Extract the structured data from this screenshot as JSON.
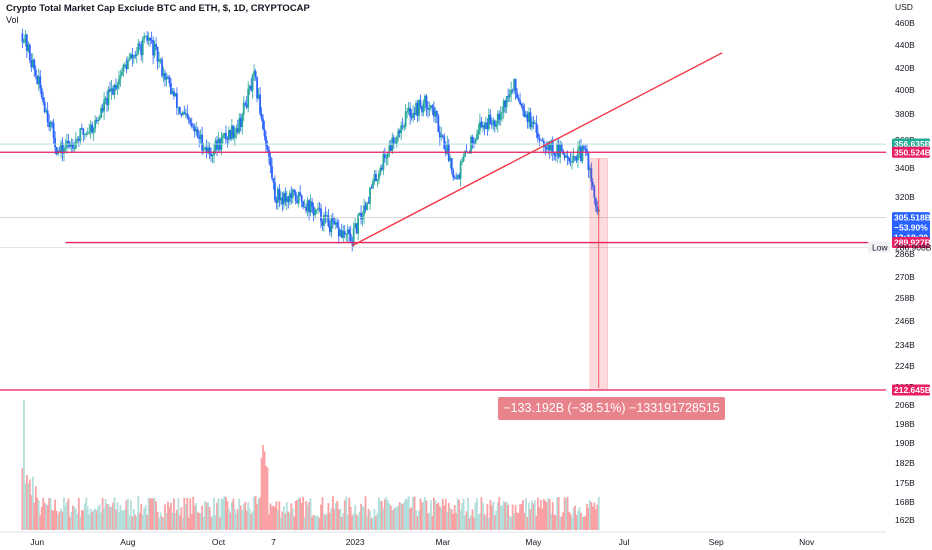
{
  "header": {
    "title": "Crypto Total Market Cap Exclude BTC and ETH, $, 1D, CRYPTOCAP",
    "volume_label": "Vol"
  },
  "currency_label": "USD",
  "colors": {
    "up": "#26a69a",
    "down": "#2962ff",
    "drawing_red": "#f23645",
    "level_pink": "#e91e63",
    "price_tag_blue": "#2962ff",
    "teal_tag": "#22ab94",
    "vol_up": "#b2dfdb",
    "vol_down": "#faa1a4"
  },
  "chart_data": {
    "type": "line",
    "subtype": "candlestick",
    "y_scale": "log",
    "ylim": [
      210,
      475
    ],
    "y_ticks": [
      "460B",
      "440B",
      "420B",
      "400B",
      "380B",
      "360B",
      "340B",
      "320B",
      "300B",
      "286B",
      "270B",
      "258B",
      "246B",
      "234B",
      "224B",
      "212B",
      "206B",
      "198B",
      "190B",
      "182B",
      "175B",
      "168B",
      "162B"
    ],
    "x_ticks": [
      "Jun",
      "Aug",
      "Oct",
      "7",
      "2023",
      "Mar",
      "May",
      "Jul",
      "Sep",
      "Nov"
    ],
    "series": [
      {
        "x": [
          "2022-05-22",
          "2022-06-15",
          "2022-07-10",
          "2022-07-30",
          "2022-08-15",
          "2022-09-05",
          "2022-09-25",
          "2022-10-15",
          "2022-10-25",
          "2022-11-08",
          "2022-11-25",
          "2022-12-20",
          "2022-12-30",
          "2023-01-20",
          "2023-02-05",
          "2023-02-20",
          "2023-03-10",
          "2023-03-25",
          "2023-04-05",
          "2023-04-18",
          "2023-05-01",
          "2023-05-15",
          "2023-05-28",
          "2023-06-06",
          "2023-06-10",
          "2023-06-14"
        ],
        "values": [
          450,
          350,
          372,
          420,
          445,
          382,
          350,
          372,
          410,
          320,
          318,
          297,
          292,
          345,
          380,
          390,
          332,
          370,
          376,
          402,
          368,
          352,
          348,
          350,
          322,
          305.5
        ]
      }
    ],
    "horizontal_levels": [
      {
        "value": 350.524,
        "label": "350.524B"
      },
      {
        "value": 289.927,
        "label": "289.927B"
      },
      {
        "value": 212.645,
        "label": "212.645B"
      }
    ],
    "trendline": {
      "from": {
        "x": "2022-12-30",
        "y": 288
      },
      "to": {
        "x": "2023-09-05",
        "y": 432
      }
    },
    "price_tags": [
      {
        "value": 356.635,
        "label": "356.635B"
      },
      {
        "value": 305.518,
        "lines": [
          "305.518B",
          "−53.90%",
          "13:18:20"
        ]
      },
      {
        "value": 289.927,
        "label": "289.927B"
      },
      {
        "value": 212.645,
        "label": "212.645B"
      }
    ],
    "low_marker": {
      "label": "Low",
      "value_label": "286.908B",
      "value": 286.908
    },
    "measurement": {
      "from": 346,
      "to": 212.645,
      "text": "−133.192B (−38.51%) −133191728515"
    },
    "volume_ylabel": "Vol"
  }
}
